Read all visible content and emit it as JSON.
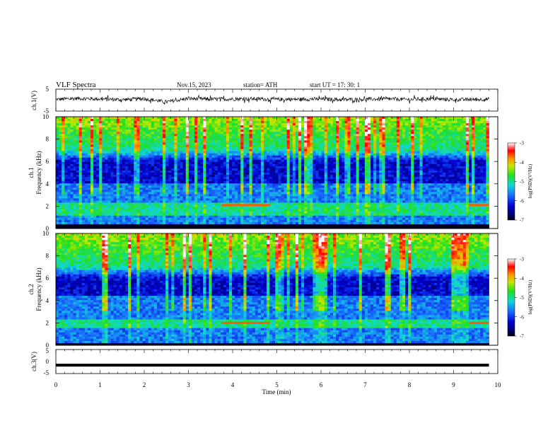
{
  "header": {
    "title": "VLF  Spectra",
    "date": "Nov.15, 2023",
    "station": "station= ATH",
    "start": "start  UT  =    17: 30: 1"
  },
  "chart_data": [
    {
      "type": "line",
      "name": "ch1-waveform",
      "ylabel": "ch.1(V)",
      "ylim": [
        -5,
        5
      ],
      "yticks": [
        "5",
        "-5"
      ],
      "xlim": [
        0,
        10
      ],
      "x": [
        0,
        0.5,
        1,
        1.5,
        2,
        2.5,
        3,
        3.5,
        4,
        4.5,
        5,
        5.5,
        6,
        6.5,
        7,
        7.5,
        8,
        8.5,
        9,
        9.5,
        9.8
      ],
      "values": [
        0.3,
        0.8,
        0.5,
        0.2,
        0.6,
        -0.8,
        0.7,
        0.4,
        0.5,
        0.6,
        0.3,
        0.4,
        0.5,
        0.2,
        0.4,
        0.5,
        0.3,
        0.6,
        0.2,
        0.3,
        0.4
      ],
      "noise_amplitude": 1.2,
      "color": "#000000"
    },
    {
      "type": "heatmap",
      "name": "ch1-spectrogram",
      "ylabel_line1": "ch.1",
      "ylabel_line2": "Frequency  (kHz)",
      "ylim": [
        0,
        10
      ],
      "yticks": [
        "0",
        "2",
        "4",
        "6",
        "8",
        "10"
      ],
      "xlim": [
        0,
        9.8
      ],
      "colorbar": {
        "label": "log(PSD)(V²/Hz)",
        "range": [
          -7,
          -3
        ],
        "ticks": [
          "-3",
          "-4",
          "-5",
          "-6",
          "-7"
        ]
      },
      "features": {
        "quiet_band_khz": [
          4,
          6
        ],
        "strong_band_khz": [
          1.2,
          2.4
        ],
        "line_at_khz": 2.1,
        "line_active_minutes": [
          [
            3.75,
            4.85
          ],
          [
            9.35,
            9.8
          ]
        ],
        "dark_baseline_khz": [
          0,
          0.3
        ]
      }
    },
    {
      "type": "heatmap",
      "name": "ch2-spectrogram",
      "ylabel_line1": "ch.2",
      "ylabel_line2": "Frequency  (kHz)",
      "ylim": [
        0,
        10
      ],
      "yticks": [
        "0",
        "2",
        "4",
        "6",
        "8",
        "10"
      ],
      "xlim": [
        0,
        9.8
      ],
      "colorbar": {
        "label": "log(PSD)(V²/Hz)",
        "range": [
          -7,
          -3
        ],
        "ticks": [
          "-3",
          "-4",
          "-5",
          "-6",
          "-7"
        ]
      },
      "features": {
        "quiet_band_khz": [
          4.5,
          6
        ],
        "strong_band_khz": [
          1.6,
          2.4
        ],
        "line_at_khz": 2.0,
        "line_active_minutes": [
          [
            3.75,
            4.85
          ],
          [
            9.35,
            9.8
          ]
        ],
        "dark_baseline_khz": [
          0,
          0.15
        ]
      }
    },
    {
      "type": "line",
      "name": "ch3-waveform",
      "ylabel": "ch.3(V)",
      "ylim": [
        -5,
        5
      ],
      "yticks": [
        "5",
        "0",
        "-5"
      ],
      "xlim": [
        0,
        10
      ],
      "x": [
        0,
        9.8
      ],
      "values": [
        -1.5,
        -1.5
      ],
      "color": "#000000"
    }
  ],
  "xaxis": {
    "label": "Time  (min)",
    "ticks": [
      "0",
      "1",
      "2",
      "3",
      "4",
      "5",
      "6",
      "7",
      "8",
      "9",
      "10"
    ]
  }
}
